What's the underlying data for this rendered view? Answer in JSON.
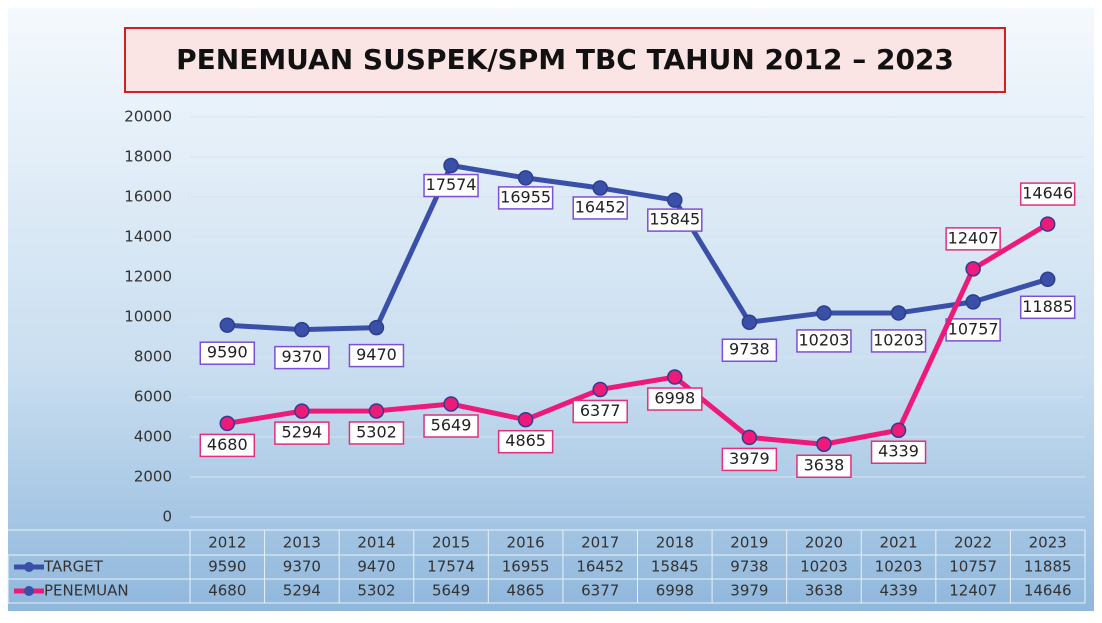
{
  "chart_data": {
    "type": "line",
    "title": "PENEMUAN  SUSPEK/SPM TBC TAHUN  2012 – 2023",
    "categories": [
      "2012",
      "2013",
      "2014",
      "2015",
      "2016",
      "2017",
      "2018",
      "2019",
      "2020",
      "2021",
      "2022",
      "2023"
    ],
    "series": [
      {
        "name": "TARGET",
        "color": "#3a4fa8",
        "label_border": "#7b4fd6",
        "values": [
          9590,
          9370,
          9470,
          17574,
          16955,
          16452,
          15845,
          9738,
          10203,
          10203,
          10757,
          11885
        ]
      },
      {
        "name": "PENEMUAN",
        "color": "#ee1a7a",
        "label_border": "#e0307a",
        "values": [
          4680,
          5294,
          5302,
          5649,
          4865,
          6377,
          6998,
          3979,
          3638,
          4339,
          12407,
          14646
        ]
      }
    ],
    "ylim": [
      0,
      20000
    ],
    "yticks": [
      0,
      2000,
      4000,
      6000,
      8000,
      10000,
      12000,
      14000,
      16000,
      18000,
      20000
    ],
    "grid": true
  }
}
